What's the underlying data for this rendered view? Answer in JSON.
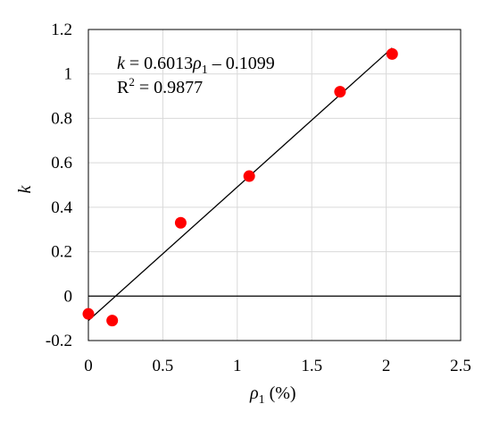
{
  "chart_data": {
    "type": "scatter",
    "x_axis": {
      "min": 0,
      "max": 2.5,
      "ticks": [
        0,
        0.5,
        1,
        1.5,
        2,
        2.5
      ],
      "tick_labels": [
        "0",
        "0.5",
        "1",
        "1.5",
        "2",
        "2.5"
      ],
      "label_symbol": "ρ",
      "label_subscript": "1",
      "label_unit": " (%)"
    },
    "y_axis": {
      "min": -0.2,
      "max": 1.2,
      "ticks": [
        -0.2,
        0,
        0.2,
        0.4,
        0.6,
        0.8,
        1,
        1.2
      ],
      "tick_labels": [
        "-0.2",
        "0",
        "0.2",
        "0.4",
        "0.6",
        "0.8",
        "1",
        "1.2"
      ],
      "label": "k"
    },
    "grid": true,
    "points": [
      {
        "x": 0.0,
        "y": -0.08
      },
      {
        "x": 0.16,
        "y": -0.11
      },
      {
        "x": 0.62,
        "y": 0.33
      },
      {
        "x": 1.08,
        "y": 0.54
      },
      {
        "x": 1.69,
        "y": 0.92
      },
      {
        "x": 2.04,
        "y": 1.09
      }
    ],
    "point_color": "#ff0000",
    "trendline": {
      "slope": 0.6013,
      "intercept": -0.1099,
      "x_start": 0.0,
      "x_end": 2.04,
      "color": "#000000"
    },
    "annotations": {
      "equation_k": "k",
      "equation_mid": " = 0.6013",
      "equation_rho": "ρ",
      "equation_sub": "1",
      "equation_tail": " – 0.1099",
      "r2_prefix": "R",
      "r2_sup": "2",
      "r2_value": " = 0.9877"
    },
    "colors": {
      "grid": "#d9d9d9",
      "frame": "#000000",
      "zero_line": "#000000"
    }
  }
}
